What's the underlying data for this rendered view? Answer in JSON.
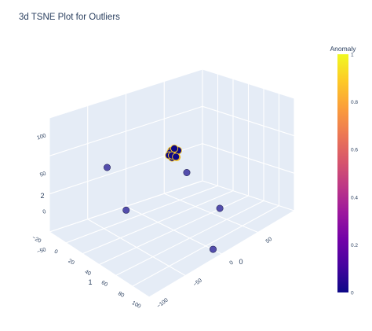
{
  "chart_data": {
    "type": "scatter3d",
    "title": "3d TSNE Plot for Outliers",
    "axes": {
      "x": {
        "title": "0",
        "range": [
          -100,
          100
        ],
        "ticks": [
          "−100",
          "−50",
          "0",
          "50"
        ]
      },
      "y": {
        "title": "1",
        "range": [
          -20,
          100
        ],
        "ticks": [
          "−20",
          "0",
          "20",
          "40",
          "60",
          "80",
          "100"
        ]
      },
      "z": {
        "title": "2",
        "range": [
          -50,
          100
        ],
        "ticks": [
          "−50",
          "0",
          "50",
          "100"
        ]
      }
    },
    "color_by": "Anomaly",
    "colorscale": [
      "#0d0887",
      "#46039f",
      "#7201a8",
      "#9c179e",
      "#bd3786",
      "#d8576b",
      "#ed7953",
      "#fb9f3a",
      "#fdca26",
      "#f0f921"
    ],
    "colorbar": {
      "title": "Anomaly",
      "range": [
        0,
        1
      ],
      "ticks": [
        "0",
        "0.2",
        "0.4",
        "0.6",
        "0.8",
        "1"
      ]
    },
    "points": [
      {
        "x": -95,
        "y": 45,
        "z": 85,
        "anomaly": 1
      },
      {
        "x": -75,
        "y": 50,
        "z": 20,
        "anomaly": 1
      },
      {
        "x": 30,
        "y": 70,
        "z": -20,
        "anomaly": 1
      },
      {
        "x": 10,
        "y": 80,
        "z": -60,
        "anomaly": 1
      },
      {
        "x": 12,
        "y": 45,
        "z": 25,
        "anomaly": 1
      },
      {
        "x": 5,
        "y": 35,
        "z": 48,
        "anomaly": 0
      },
      {
        "x": 8,
        "y": 33,
        "z": 50,
        "anomaly": 0
      },
      {
        "x": 2,
        "y": 36,
        "z": 45,
        "anomaly": 0
      },
      {
        "x": 6,
        "y": 38,
        "z": 52,
        "anomaly": 0
      },
      {
        "x": 9,
        "y": 31,
        "z": 47,
        "anomaly": 0
      },
      {
        "x": 3,
        "y": 34,
        "z": 53,
        "anomaly": 0
      },
      {
        "x": 7,
        "y": 37,
        "z": 44,
        "anomaly": 0
      },
      {
        "x": 4,
        "y": 32,
        "z": 49,
        "anomaly": 0
      },
      {
        "x": 10,
        "y": 36,
        "z": 51,
        "anomaly": 0
      },
      {
        "x": 1,
        "y": 33,
        "z": 47,
        "anomaly": 0
      },
      {
        "x": 6,
        "y": 35,
        "z": 55,
        "anomaly": 0
      },
      {
        "x": 8,
        "y": 30,
        "z": 42,
        "anomaly": 0
      },
      {
        "x": 5,
        "y": 38,
        "z": 46,
        "anomaly": 0
      }
    ],
    "marker_colors": {
      "normal": "#0d0887",
      "outlier": "#4b45a8",
      "normal_outline": "#fdca26",
      "outlier_outline": "#28285a"
    },
    "scene": {
      "background": "#e5ecf6",
      "gridline": "#ffffff"
    },
    "legend": "none",
    "grid": true
  }
}
